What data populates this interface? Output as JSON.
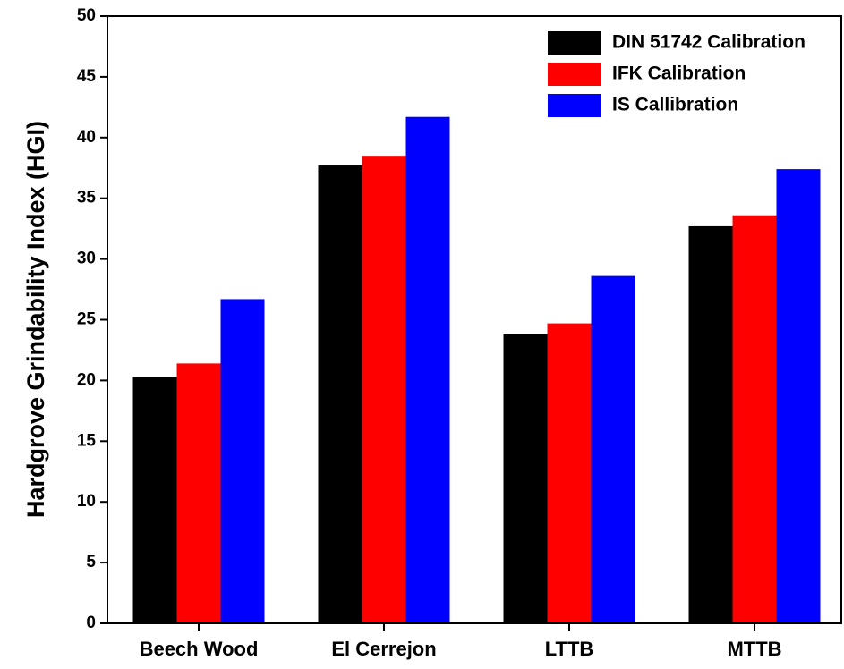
{
  "chart_data": {
    "type": "bar",
    "y_label": "Hardgrove Grindability Index (HGI)",
    "categories": [
      "Beech Wood",
      "El Cerrejon",
      "LTTB",
      "MTTB"
    ],
    "series": [
      {
        "name": "DIN 51742 Calibration",
        "color": "#000000",
        "values": [
          20.3,
          37.7,
          23.8,
          32.7
        ]
      },
      {
        "name": "IFK Calibration",
        "color": "#ff0000",
        "values": [
          21.4,
          38.5,
          24.7,
          33.6
        ]
      },
      {
        "name": "IS Callibration",
        "color": "#0000ff",
        "values": [
          26.7,
          41.7,
          28.6,
          37.4
        ]
      }
    ],
    "ylim": [
      0,
      50
    ],
    "yticks": [
      0,
      5,
      10,
      15,
      20,
      25,
      30,
      35,
      40,
      45,
      50
    ],
    "legend": "upper-right"
  }
}
